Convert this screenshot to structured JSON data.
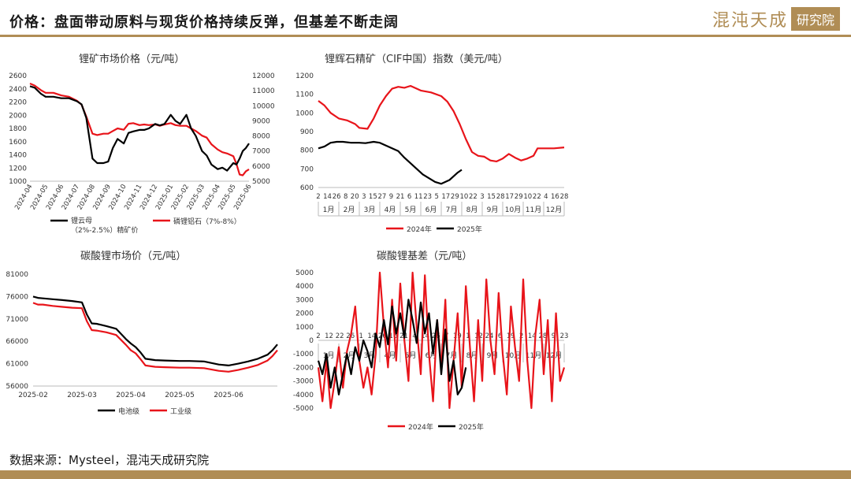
{
  "header": {
    "title": "价格：盘面带动原料与现货价格持续反弹，但基差不断走阔",
    "logo_text": "混沌天成",
    "logo_badge": "研究院",
    "accent_color": "#b08d55"
  },
  "source": "数据来源：Mysteel，混沌天成研究院",
  "chart_data": [
    {
      "type": "line",
      "title": "锂矿市场价格（元/吨）",
      "x_ticks": [
        "2024-04",
        "2024-05",
        "2024-06",
        "2024-07",
        "2024-08",
        "2024-09",
        "2024-10",
        "2024-11",
        "2024-12",
        "2025-01",
        "2025-02",
        "2025-03",
        "2025-04",
        "2025-05",
        "2025-06"
      ],
      "y_left": {
        "min": 1000,
        "max": 2600,
        "ticks": [
          "1000",
          "1200",
          "1400",
          "1600",
          "1800",
          "2000",
          "2200",
          "2400",
          "2600"
        ]
      },
      "y_right": {
        "min": 5000,
        "max": 12000,
        "ticks": [
          "5000",
          "6000",
          "7000",
          "8000",
          "9000",
          "10000",
          "11000",
          "12000"
        ]
      },
      "legend_position": "bottom",
      "series": [
        {
          "name": "锂云母（2%-2.5%）精矿价",
          "axis": "right",
          "color": "#000000",
          "x": [
            0,
            0.3,
            0.7,
            1.0,
            1.5,
            2.0,
            2.5,
            3.0,
            3.3,
            3.6,
            4.0,
            4.3,
            4.7,
            5.0,
            5.3,
            5.6,
            6.0,
            6.3,
            6.6,
            7.0,
            7.3,
            7.6,
            8.0,
            8.3,
            8.6,
            9.0,
            9.3,
            9.6,
            10.0,
            10.3,
            10.6,
            11.0,
            11.3,
            11.6,
            12.0,
            12.3,
            12.6,
            13.0,
            13.2,
            13.4,
            13.6,
            13.8,
            14.0
          ],
          "values": [
            11300,
            11200,
            10800,
            10600,
            10600,
            10500,
            10500,
            10300,
            10100,
            9200,
            6500,
            6200,
            6200,
            6300,
            7200,
            7800,
            7500,
            8200,
            8300,
            8400,
            8400,
            8500,
            8800,
            8700,
            8800,
            9400,
            9000,
            8800,
            9400,
            8500,
            8000,
            7000,
            6700,
            6100,
            5800,
            5900,
            5700,
            6200,
            6100,
            6500,
            7000,
            7200,
            7500
          ]
        },
        {
          "name": "磷锂铝石（7%-8%）",
          "axis": "left",
          "color": "#e8141a",
          "x": [
            0,
            0.3,
            0.7,
            1.0,
            1.5,
            2.0,
            2.5,
            3.0,
            3.3,
            3.6,
            4.0,
            4.3,
            4.7,
            5.0,
            5.3,
            5.6,
            6.0,
            6.3,
            6.6,
            7.0,
            7.3,
            7.6,
            8.0,
            8.3,
            8.6,
            9.0,
            9.3,
            9.6,
            10.0,
            10.3,
            10.6,
            11.0,
            11.3,
            11.6,
            12.0,
            12.3,
            12.6,
            13.0,
            13.2,
            13.4,
            13.6,
            13.8,
            14.0
          ],
          "values": [
            2480,
            2450,
            2380,
            2340,
            2340,
            2300,
            2280,
            2220,
            2160,
            1980,
            1720,
            1700,
            1720,
            1720,
            1760,
            1800,
            1780,
            1870,
            1880,
            1850,
            1860,
            1850,
            1860,
            1840,
            1860,
            1880,
            1850,
            1840,
            1840,
            1800,
            1760,
            1690,
            1660,
            1560,
            1480,
            1440,
            1420,
            1380,
            1260,
            1100,
            1090,
            1150,
            1180
          ]
        }
      ]
    },
    {
      "type": "line",
      "title": "锂辉石精矿（CIF中国）指数（美元/吨）",
      "y": {
        "min": 600,
        "max": 1200,
        "ticks": [
          "600",
          "700",
          "800",
          "900",
          "1000",
          "1100",
          "1200"
        ]
      },
      "x_day_ticks": [
        "2",
        "14",
        "26",
        "8",
        "20",
        "3",
        "15",
        "27",
        "9",
        "21",
        "6",
        "11",
        "23",
        "5",
        "17",
        "29",
        "10",
        "22",
        "3",
        "15",
        "28",
        "17",
        "29",
        "10",
        "22",
        "4",
        "16",
        "28"
      ],
      "x_months": [
        "1月",
        "2月",
        "3月",
        "4月",
        "5月",
        "6月",
        "7月",
        "8月",
        "9月",
        "10月",
        "11月",
        "12月"
      ],
      "legend_position": "bottom",
      "series": [
        {
          "name": "2024年",
          "color": "#e8141a",
          "x": [
            0,
            0.3,
            0.6,
            1.0,
            1.4,
            1.8,
            2.0,
            2.4,
            2.7,
            3.0,
            3.3,
            3.6,
            3.9,
            4.2,
            4.5,
            5.0,
            5.5,
            6.0,
            6.3,
            6.6,
            6.9,
            7.2,
            7.5,
            7.8,
            8.1,
            8.4,
            8.7,
            9.0,
            9.3,
            9.6,
            9.9,
            10.2,
            10.5,
            10.7,
            11.0,
            11.5,
            12.0
          ],
          "values": [
            1065,
            1040,
            1000,
            970,
            960,
            940,
            920,
            915,
            970,
            1040,
            1090,
            1130,
            1140,
            1135,
            1145,
            1120,
            1110,
            1090,
            1060,
            1010,
            940,
            860,
            790,
            770,
            765,
            745,
            740,
            755,
            780,
            760,
            745,
            755,
            770,
            810,
            810,
            810,
            815
          ]
        },
        {
          "name": "2025年",
          "color": "#000000",
          "x": [
            0,
            0.3,
            0.6,
            0.9,
            1.2,
            1.6,
            2.0,
            2.3,
            2.7,
            3.0,
            3.3,
            3.6,
            3.9,
            4.2,
            4.5,
            4.8,
            5.1,
            5.4,
            5.7,
            6.0,
            6.2,
            6.4,
            6.6,
            6.8,
            7.0
          ],
          "values": [
            810,
            820,
            840,
            845,
            845,
            840,
            840,
            838,
            845,
            840,
            825,
            810,
            795,
            760,
            730,
            700,
            670,
            650,
            630,
            620,
            630,
            640,
            660,
            680,
            695
          ]
        }
      ]
    },
    {
      "type": "line",
      "title": "碳酸锂市场价（元/吨）",
      "x_ticks": [
        "2025-02",
        "2025-03",
        "2025-04",
        "2025-05",
        "2025-06"
      ],
      "y": {
        "min": 56000,
        "max": 81000,
        "ticks": [
          "56000",
          "61000",
          "66000",
          "71000",
          "76000",
          "81000"
        ]
      },
      "legend_position": "bottom",
      "series": [
        {
          "name": "电池级",
          "color": "#000000",
          "x": [
            0,
            0.1,
            0.2,
            0.4,
            0.6,
            0.8,
            1.0,
            1.1,
            1.2,
            1.3,
            1.5,
            1.7,
            1.9,
            2.0,
            2.1,
            2.2,
            2.3,
            2.5,
            2.7,
            3.0,
            3.2,
            3.5,
            3.8,
            4.0,
            4.2,
            4.4,
            4.6,
            4.8,
            4.9,
            5.0
          ],
          "values": [
            76000,
            75700,
            75600,
            75400,
            75200,
            75000,
            74700,
            72000,
            70000,
            69900,
            69400,
            68800,
            66500,
            65500,
            64700,
            63500,
            62100,
            61800,
            61700,
            61600,
            61600,
            61500,
            60800,
            60600,
            61000,
            61500,
            62100,
            63000,
            64000,
            65300
          ]
        },
        {
          "name": "工业级",
          "color": "#e8141a",
          "x": [
            0,
            0.1,
            0.2,
            0.4,
            0.6,
            0.8,
            1.0,
            1.1,
            1.2,
            1.3,
            1.5,
            1.7,
            1.9,
            2.0,
            2.1,
            2.2,
            2.3,
            2.5,
            2.7,
            3.0,
            3.2,
            3.5,
            3.8,
            4.0,
            4.2,
            4.4,
            4.6,
            4.8,
            4.9,
            5.0
          ],
          "values": [
            74600,
            74200,
            74200,
            73900,
            73700,
            73500,
            73400,
            70500,
            68500,
            68400,
            68000,
            67400,
            65200,
            64000,
            63300,
            62000,
            60600,
            60300,
            60200,
            60100,
            60100,
            60000,
            59400,
            59200,
            59600,
            60100,
            60700,
            61700,
            62700,
            64000
          ]
        }
      ]
    },
    {
      "type": "line",
      "title": "碳酸锂基差（元/吨）",
      "y": {
        "min": -5000,
        "max": 5000,
        "ticks": [
          "-5000",
          "-4000",
          "-3000",
          "-2000",
          "-1000",
          "0",
          "1000",
          "2000",
          "3000",
          "4000",
          "5000"
        ]
      },
      "x_day_ticks": [
        "2",
        "12",
        "22",
        "26",
        "1",
        "14",
        "26",
        "16",
        "21",
        "4",
        "14",
        "26",
        "7",
        "19",
        "1",
        "12",
        "24",
        "6",
        "19",
        "2",
        "14",
        "28",
        "9",
        "23"
      ],
      "x_months": [
        "1月",
        "2月",
        "3月",
        "4月",
        "5月",
        "6月",
        "7月",
        "8月",
        "9月",
        "10月",
        "11月",
        "12月"
      ],
      "legend_position": "bottom",
      "series": [
        {
          "name": "2024年",
          "color": "#e8141a",
          "x": [
            0,
            0.2,
            0.4,
            0.6,
            0.8,
            1.0,
            1.2,
            1.4,
            1.6,
            1.8,
            2.0,
            2.2,
            2.4,
            2.6,
            2.8,
            3.0,
            3.2,
            3.4,
            3.6,
            3.8,
            4.0,
            4.2,
            4.4,
            4.6,
            4.8,
            5.0,
            5.2,
            5.4,
            5.6,
            5.8,
            6.0,
            6.2,
            6.4,
            6.6,
            6.8,
            7.0,
            7.2,
            7.4,
            7.6,
            7.8,
            8.0,
            8.2,
            8.4,
            8.6,
            8.8,
            9.0,
            9.2,
            9.4,
            9.6,
            9.8,
            10.0,
            10.2,
            10.4,
            10.6,
            10.8,
            11.0,
            11.2,
            11.4,
            11.6,
            11.8,
            12.0
          ],
          "values": [
            -2000,
            -4500,
            -1500,
            -5000,
            -3000,
            -500,
            -3500,
            -800,
            500,
            2500,
            -1500,
            -3500,
            -2000,
            -4000,
            -1000,
            5000,
            1000,
            -2000,
            3000,
            -1500,
            4200,
            0,
            -3000,
            5000,
            1000,
            -2500,
            4800,
            -1000,
            -4500,
            1500,
            -2000,
            3000,
            -5000,
            -1500,
            2000,
            -3500,
            4000,
            -500,
            -4500,
            1500,
            -3000,
            4500,
            0,
            -2500,
            3500,
            -1000,
            -4000,
            2500,
            -500,
            -3000,
            4500,
            -1500,
            -5000,
            500,
            3000,
            -2500,
            1500,
            -4500,
            2000,
            -3000,
            -2000
          ]
        },
        {
          "name": "2025年",
          "color": "#000000",
          "x": [
            0,
            0.2,
            0.4,
            0.6,
            0.8,
            1.0,
            1.2,
            1.4,
            1.6,
            1.8,
            2.0,
            2.2,
            2.4,
            2.6,
            2.8,
            3.0,
            3.2,
            3.4,
            3.6,
            3.8,
            4.0,
            4.2,
            4.4,
            4.6,
            4.8,
            5.0,
            5.2,
            5.4,
            5.6,
            5.8,
            6.0,
            6.2,
            6.4,
            6.6,
            6.8,
            7.0,
            7.2
          ],
          "values": [
            -1500,
            -2500,
            -1000,
            -3500,
            -2000,
            -4000,
            -2500,
            -1000,
            -2500,
            -500,
            -1500,
            0,
            -800,
            -2000,
            500,
            -500,
            1500,
            -300,
            2500,
            500,
            2000,
            200,
            3000,
            1500,
            -200,
            2800,
            500,
            2000,
            -1000,
            1500,
            -2500,
            800,
            -3000,
            -1500,
            -4000,
            -3500,
            -2000
          ]
        }
      ]
    }
  ]
}
